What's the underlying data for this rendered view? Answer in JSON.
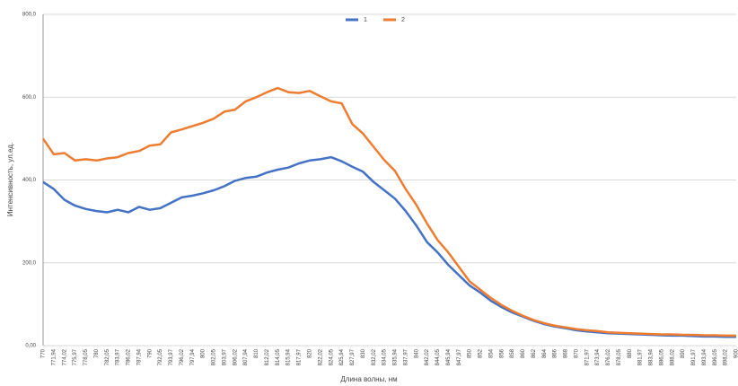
{
  "chart_data": {
    "type": "line",
    "xlabel": "Длина волны, нм",
    "ylabel": "Интенсивность, ул.ед.",
    "categories": [
      "770",
      "771,94",
      "774,02",
      "775,97",
      "778,05",
      "780",
      "782,05",
      "783,97",
      "786,02",
      "787,94",
      "790",
      "792,05",
      "793,97",
      "796,02",
      "797,94",
      "800",
      "802,05",
      "803,97",
      "806,02",
      "807,94",
      "810",
      "812,02",
      "814,05",
      "815,94",
      "817,97",
      "820",
      "822,02",
      "824,05",
      "825,94",
      "827,97",
      "830",
      "832,02",
      "834,05",
      "835,94",
      "837,97",
      "840",
      "842,02",
      "844,05",
      "845,94",
      "847,97",
      "850",
      "852",
      "854",
      "856",
      "858",
      "860",
      "862",
      "864",
      "866",
      "868",
      "870",
      "871,97",
      "873,94",
      "876,02",
      "878,05",
      "880",
      "881,97",
      "883,94",
      "886,05",
      "888,02",
      "890",
      "891,97",
      "893,94",
      "896,05",
      "898,02",
      "900"
    ],
    "series": [
      {
        "name": "1",
        "color": "#4472c4",
        "values": [
          395,
          378,
          352,
          338,
          330,
          325,
          322,
          328,
          322,
          335,
          328,
          332,
          345,
          358,
          362,
          368,
          375,
          385,
          398,
          405,
          408,
          418,
          425,
          430,
          440,
          447,
          450,
          455,
          445,
          432,
          420,
          395,
          375,
          355,
          325,
          290,
          250,
          225,
          195,
          170,
          145,
          128,
          108,
          93,
          80,
          70,
          60,
          52,
          46,
          42,
          37,
          34,
          32,
          30,
          29,
          28,
          27,
          26,
          25,
          24,
          24,
          23,
          22,
          22,
          21,
          21
        ]
      },
      {
        "name": "2",
        "color": "#ed7d31",
        "values": [
          500,
          462,
          465,
          447,
          450,
          447,
          452,
          455,
          465,
          470,
          483,
          486,
          515,
          522,
          530,
          538,
          548,
          565,
          570,
          590,
          600,
          612,
          622,
          612,
          610,
          615,
          602,
          590,
          585,
          535,
          512,
          480,
          448,
          422,
          378,
          340,
          295,
          255,
          225,
          190,
          155,
          135,
          115,
          98,
          84,
          72,
          62,
          54,
          48,
          44,
          40,
          37,
          35,
          32,
          31,
          30,
          29,
          28,
          27,
          27,
          26,
          26,
          25,
          25,
          24,
          24
        ]
      }
    ],
    "ylim": [
      0,
      800
    ],
    "yticks": [
      {
        "value": 0,
        "label": "0,00"
      },
      {
        "value": 200,
        "label": "200,0"
      },
      {
        "value": 400,
        "label": "400,0"
      },
      {
        "value": 600,
        "label": "600,0"
      },
      {
        "value": 800,
        "label": "800,0"
      }
    ],
    "grid": true,
    "legend": "top"
  }
}
